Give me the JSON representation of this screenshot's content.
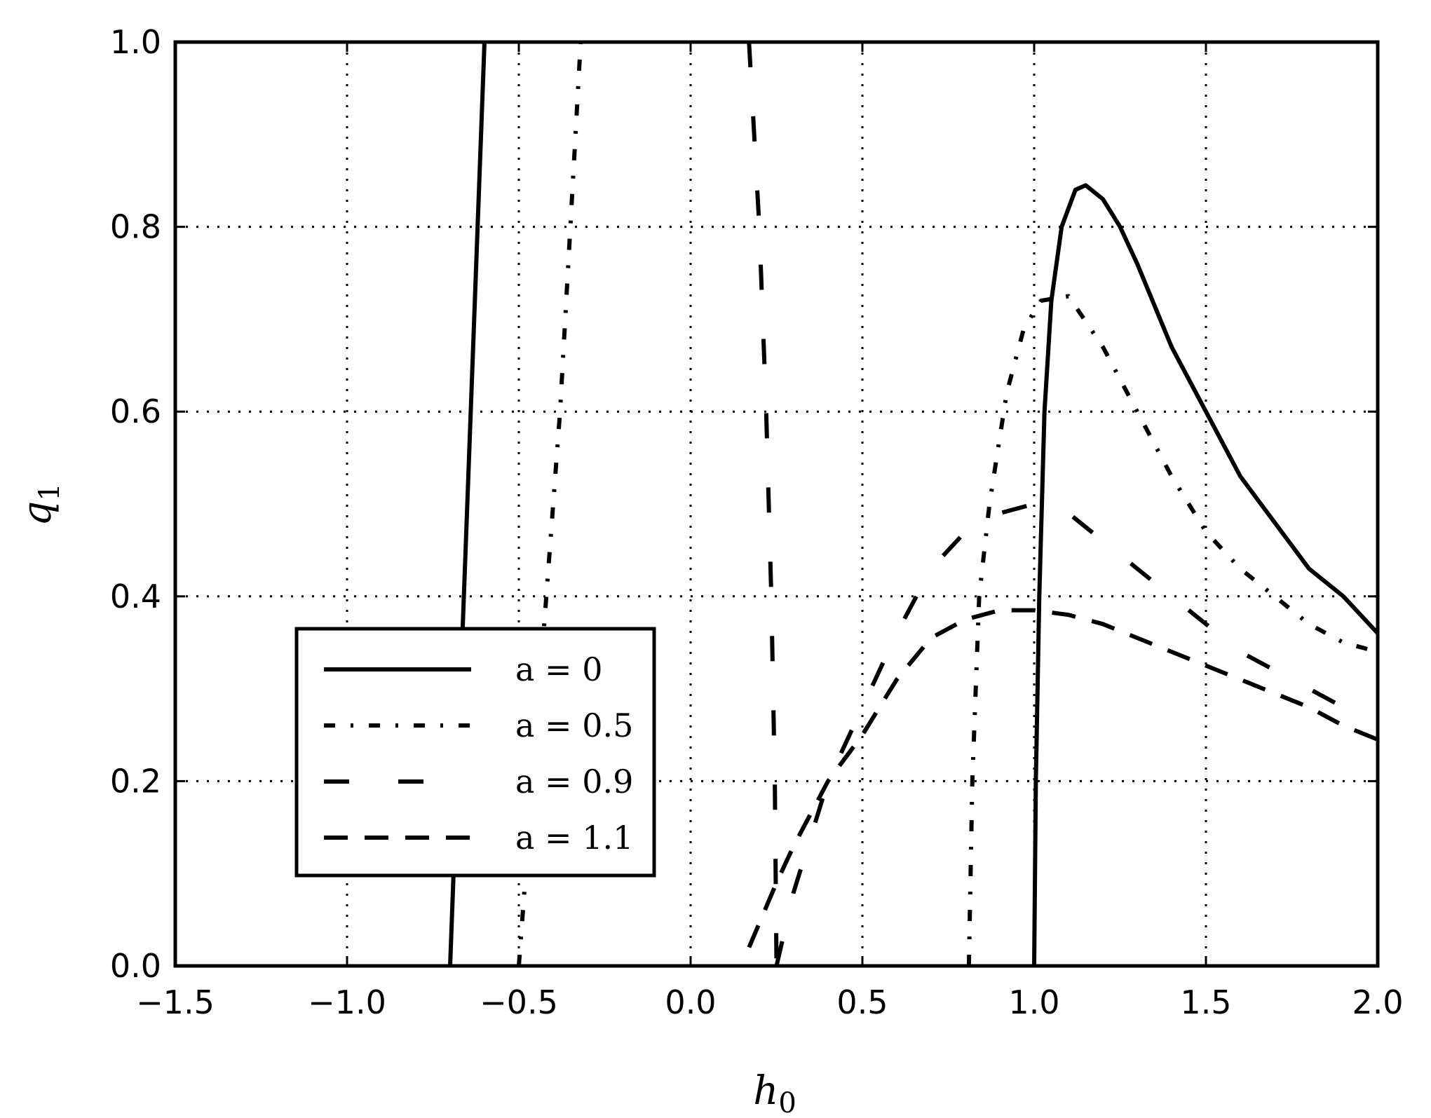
{
  "chart_data": {
    "type": "line",
    "xlabel": "h_0",
    "ylabel": "q_1",
    "xlim": [
      -1.5,
      2.0
    ],
    "ylim": [
      0.0,
      1.0
    ],
    "xticks": [
      -1.5,
      -1.0,
      -0.5,
      0.0,
      0.5,
      1.0,
      1.5,
      2.0
    ],
    "yticks": [
      0.0,
      0.2,
      0.4,
      0.6,
      0.8,
      1.0
    ],
    "xtick_labels": [
      "−1.5",
      "−1.0",
      "−0.5",
      "0.0",
      "0.5",
      "1.0",
      "1.5",
      "2.0"
    ],
    "ytick_labels": [
      "0.0",
      "0.2",
      "0.4",
      "0.6",
      "0.8",
      "1.0"
    ],
    "grid": true,
    "legend_position": "lower-left",
    "line_color": "#000000",
    "series": [
      {
        "name": "a=0",
        "legend_label": "a = 0",
        "style": "solid",
        "segments": [
          [
            [
              -0.7,
              0.0
            ],
            [
              -0.68,
              0.2
            ],
            [
              -0.66,
              0.4
            ],
            [
              -0.64,
              0.6
            ],
            [
              -0.62,
              0.8
            ],
            [
              -0.6,
              1.0
            ]
          ],
          [
            [
              1.0,
              0.0
            ],
            [
              1.005,
              0.2
            ],
            [
              1.015,
              0.4
            ],
            [
              1.03,
              0.6
            ],
            [
              1.05,
              0.72
            ],
            [
              1.08,
              0.8
            ],
            [
              1.12,
              0.84
            ],
            [
              1.15,
              0.845
            ],
            [
              1.2,
              0.83
            ],
            [
              1.25,
              0.8
            ],
            [
              1.3,
              0.76
            ],
            [
              1.4,
              0.67
            ],
            [
              1.5,
              0.6
            ],
            [
              1.6,
              0.53
            ],
            [
              1.7,
              0.48
            ],
            [
              1.8,
              0.43
            ],
            [
              1.9,
              0.4
            ],
            [
              2.0,
              0.36
            ]
          ]
        ]
      },
      {
        "name": "a=0.5",
        "legend_label": "a = 0.5",
        "style": "dashdot",
        "segments": [
          [
            [
              -0.5,
              0.0
            ],
            [
              -0.47,
              0.15
            ],
            [
              -0.44,
              0.3
            ],
            [
              -0.41,
              0.45
            ],
            [
              -0.38,
              0.6
            ],
            [
              -0.35,
              0.8
            ],
            [
              -0.32,
              1.0
            ]
          ],
          [
            [
              0.81,
              0.0
            ],
            [
              0.82,
              0.2
            ],
            [
              0.84,
              0.4
            ],
            [
              0.87,
              0.5
            ],
            [
              0.92,
              0.62
            ],
            [
              0.97,
              0.69
            ],
            [
              1.02,
              0.72
            ],
            [
              1.1,
              0.725
            ],
            [
              1.2,
              0.67
            ],
            [
              1.3,
              0.6
            ],
            [
              1.4,
              0.53
            ],
            [
              1.5,
              0.47
            ],
            [
              1.6,
              0.43
            ],
            [
              1.7,
              0.4
            ],
            [
              1.8,
              0.37
            ],
            [
              1.9,
              0.35
            ],
            [
              2.0,
              0.34
            ]
          ]
        ]
      },
      {
        "name": "a=0.9",
        "legend_label": "a = 0.9",
        "style": "dashed-long",
        "segments": [
          [
            [
              0.17,
              1.0
            ],
            [
              0.2,
              0.8
            ],
            [
              0.22,
              0.6
            ],
            [
              0.235,
              0.4
            ],
            [
              0.245,
              0.2
            ],
            [
              0.25,
              0.0
            ]
          ],
          [
            [
              0.25,
              0.0
            ],
            [
              0.3,
              0.08
            ],
            [
              0.4,
              0.2
            ],
            [
              0.5,
              0.28
            ],
            [
              0.6,
              0.36
            ],
            [
              0.7,
              0.43
            ],
            [
              0.8,
              0.47
            ],
            [
              0.9,
              0.49
            ],
            [
              1.0,
              0.5
            ],
            [
              1.1,
              0.49
            ],
            [
              1.2,
              0.46
            ],
            [
              1.3,
              0.43
            ],
            [
              1.4,
              0.4
            ],
            [
              1.5,
              0.37
            ],
            [
              1.6,
              0.34
            ],
            [
              1.7,
              0.32
            ],
            [
              1.8,
              0.3
            ],
            [
              1.9,
              0.28
            ],
            [
              2.0,
              0.26
            ]
          ]
        ]
      },
      {
        "name": "a=1.1",
        "legend_label": "a = 1.1",
        "style": "dashed",
        "segments": [
          [
            [
              0.17,
              0.02
            ],
            [
              0.25,
              0.09
            ],
            [
              0.3,
              0.13
            ],
            [
              0.4,
              0.2
            ],
            [
              0.5,
              0.25
            ],
            [
              0.6,
              0.31
            ],
            [
              0.7,
              0.355
            ],
            [
              0.8,
              0.375
            ],
            [
              0.9,
              0.385
            ],
            [
              1.0,
              0.385
            ],
            [
              1.1,
              0.38
            ],
            [
              1.2,
              0.37
            ],
            [
              1.3,
              0.355
            ],
            [
              1.4,
              0.34
            ],
            [
              1.5,
              0.325
            ],
            [
              1.6,
              0.31
            ],
            [
              1.7,
              0.295
            ],
            [
              1.8,
              0.28
            ],
            [
              1.9,
              0.26
            ],
            [
              2.0,
              0.245
            ]
          ]
        ]
      }
    ]
  }
}
